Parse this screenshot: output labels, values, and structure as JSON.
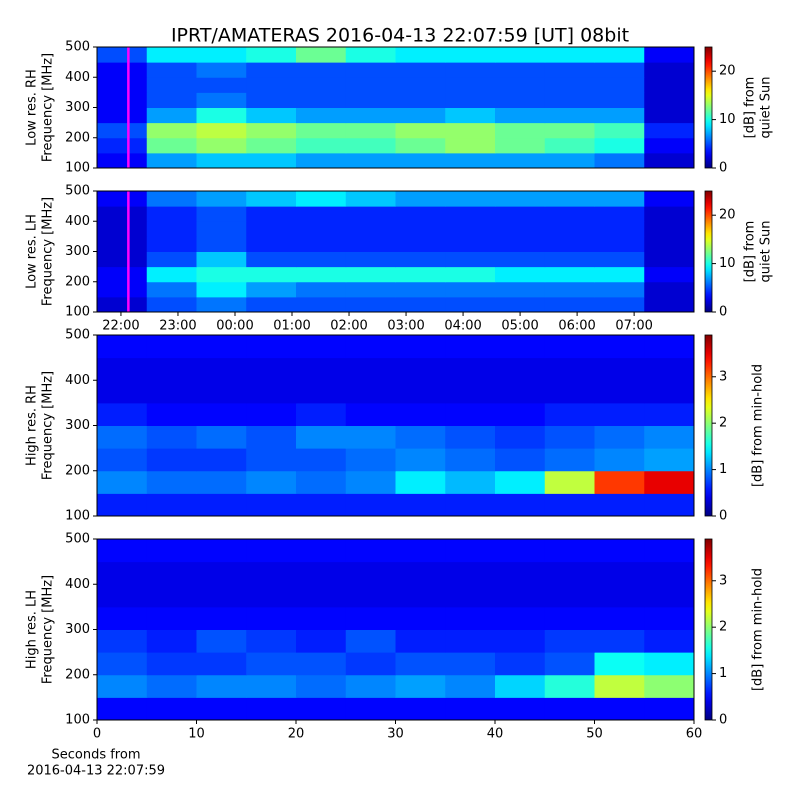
{
  "title": "IPRT/AMATERAS 2016-04-13 22:07:59 [UT]   08bit",
  "chart_data": [
    {
      "type": "heatmap",
      "ylabel": [
        "Low res. RH",
        "Frequency [MHz]"
      ],
      "colormap": "jet",
      "xlim": [
        21.58,
        32.05
      ],
      "ylim": [
        100,
        500
      ],
      "yticks": [
        100,
        200,
        300,
        400,
        500
      ],
      "clim": [
        0,
        25
      ],
      "cticks": [
        0,
        10,
        20
      ],
      "clabel": [
        "[dB] from",
        "quiet Sun"
      ],
      "marker_x": 22.13,
      "marker_color": "#ff00ff",
      "z": [
        [
          3,
          7,
          8,
          8,
          7,
          7,
          7,
          7,
          7,
          7,
          6,
          2
        ],
        [
          4,
          12,
          13,
          12,
          11,
          11,
          12,
          13,
          12,
          11,
          10,
          3
        ],
        [
          5,
          13,
          14,
          13,
          12,
          12,
          13,
          13,
          12,
          12,
          11,
          4
        ],
        [
          3,
          7,
          10,
          8,
          7,
          7,
          7,
          8,
          7,
          7,
          7,
          2
        ],
        [
          3,
          5,
          6,
          5,
          5,
          5,
          5,
          5,
          5,
          5,
          5,
          2
        ],
        [
          3,
          5,
          5,
          5,
          5,
          5,
          5,
          5,
          5,
          5,
          5,
          2
        ],
        [
          3,
          5,
          6,
          5,
          5,
          5,
          5,
          5,
          5,
          5,
          5,
          2
        ],
        [
          5,
          9,
          9,
          10,
          12,
          10,
          9,
          9,
          9,
          9,
          9,
          3
        ]
      ]
    },
    {
      "type": "heatmap",
      "ylabel": [
        "Low res. LH",
        "Frequency [MHz]"
      ],
      "colormap": "jet",
      "xlim": [
        21.58,
        32.05
      ],
      "ylim": [
        100,
        500
      ],
      "yticks": [
        100,
        200,
        300,
        400,
        500
      ],
      "xticks": [
        {
          "value": 22,
          "label": "22:00"
        },
        {
          "value": 23,
          "label": "23:00"
        },
        {
          "value": 24,
          "label": "00:00"
        },
        {
          "value": 25,
          "label": "01:00"
        },
        {
          "value": 26,
          "label": "02:00"
        },
        {
          "value": 27,
          "label": "03:00"
        },
        {
          "value": 28,
          "label": "04:00"
        },
        {
          "value": 29,
          "label": "05:00"
        },
        {
          "value": 30,
          "label": "06:00"
        },
        {
          "value": 31,
          "label": "07:00"
        }
      ],
      "clim": [
        0,
        25
      ],
      "cticks": [
        0,
        10,
        20
      ],
      "clabel": [
        "[dB] from",
        "quiet Sun"
      ],
      "marker_x": 22.13,
      "marker_color": "#ff00ff",
      "z": [
        [
          2,
          5,
          6,
          5,
          5,
          5,
          5,
          5,
          5,
          5,
          5,
          2
        ],
        [
          3,
          6,
          9,
          7,
          6,
          6,
          6,
          6,
          6,
          6,
          6,
          2
        ],
        [
          3,
          9,
          10,
          10,
          10,
          10,
          10,
          10,
          9,
          9,
          9,
          3
        ],
        [
          2,
          5,
          8,
          5,
          5,
          5,
          5,
          5,
          5,
          5,
          5,
          2
        ],
        [
          2,
          4,
          5,
          4,
          4,
          4,
          4,
          4,
          4,
          4,
          4,
          2
        ],
        [
          2,
          4,
          5,
          4,
          4,
          4,
          4,
          4,
          4,
          4,
          4,
          2
        ],
        [
          2,
          4,
          5,
          4,
          4,
          4,
          4,
          4,
          4,
          4,
          4,
          2
        ],
        [
          3,
          6,
          7,
          8,
          9,
          8,
          7,
          7,
          7,
          7,
          7,
          3
        ]
      ]
    },
    {
      "type": "heatmap",
      "ylabel": [
        "High res. RH",
        "Frequency [MHz]"
      ],
      "colormap": "jet",
      "xlim": [
        0,
        60
      ],
      "ylim": [
        100,
        500
      ],
      "yticks": [
        100,
        200,
        300,
        400,
        500
      ],
      "clim": [
        0,
        3.9
      ],
      "cticks": [
        0,
        1,
        2,
        3
      ],
      "clabel": [
        "[dB] from min-hold"
      ],
      "z": [
        [
          0.6,
          0.6,
          0.6,
          0.6,
          0.6,
          0.6,
          0.6,
          0.6,
          0.6,
          0.6,
          0.6,
          0.6
        ],
        [
          1.0,
          0.9,
          0.9,
          1.0,
          0.9,
          1.0,
          1.4,
          1.2,
          1.4,
          2.2,
          3.2,
          3.5
        ],
        [
          0.8,
          0.7,
          0.7,
          0.8,
          0.8,
          0.9,
          1.0,
          0.9,
          0.8,
          0.9,
          1.0,
          1.1
        ],
        [
          0.9,
          0.8,
          0.9,
          0.8,
          1.0,
          1.0,
          0.9,
          0.8,
          0.7,
          0.8,
          0.9,
          1.0
        ],
        [
          0.6,
          0.5,
          0.5,
          0.5,
          0.6,
          0.5,
          0.5,
          0.5,
          0.5,
          0.6,
          0.6,
          0.6
        ],
        [
          0.4,
          0.4,
          0.4,
          0.4,
          0.4,
          0.4,
          0.4,
          0.4,
          0.4,
          0.4,
          0.4,
          0.4
        ],
        [
          0.4,
          0.4,
          0.4,
          0.4,
          0.4,
          0.4,
          0.4,
          0.4,
          0.4,
          0.4,
          0.4,
          0.4
        ],
        [
          0.5,
          0.5,
          0.5,
          0.5,
          0.5,
          0.5,
          0.5,
          0.5,
          0.5,
          0.5,
          0.5,
          0.5
        ]
      ]
    },
    {
      "type": "heatmap",
      "ylabel": [
        "High res. LH",
        "Frequency [MHz]"
      ],
      "colormap": "jet",
      "xlim": [
        0,
        60
      ],
      "ylim": [
        100,
        500
      ],
      "yticks": [
        100,
        200,
        300,
        400,
        500
      ],
      "xticks": [
        0,
        10,
        20,
        30,
        40,
        50,
        60
      ],
      "xlabel": [
        "Seconds from",
        "2016-04-13 22:07:59"
      ],
      "clim": [
        0,
        3.9
      ],
      "cticks": [
        0,
        1,
        2,
        3
      ],
      "clabel": [
        "[dB] from min-hold"
      ],
      "z": [
        [
          0.5,
          0.5,
          0.5,
          0.5,
          0.5,
          0.5,
          0.5,
          0.5,
          0.5,
          0.5,
          0.5,
          0.5
        ],
        [
          1.0,
          0.9,
          1.0,
          1.0,
          0.9,
          1.0,
          1.1,
          1.0,
          1.3,
          1.6,
          2.2,
          2.0
        ],
        [
          0.8,
          0.7,
          0.7,
          0.8,
          0.8,
          0.7,
          0.8,
          0.8,
          0.7,
          0.8,
          1.5,
          1.4
        ],
        [
          0.7,
          0.6,
          0.8,
          0.7,
          0.6,
          0.8,
          0.6,
          0.6,
          0.6,
          0.7,
          0.7,
          0.6
        ],
        [
          0.5,
          0.5,
          0.5,
          0.5,
          0.5,
          0.5,
          0.5,
          0.5,
          0.5,
          0.5,
          0.5,
          0.5
        ],
        [
          0.4,
          0.4,
          0.4,
          0.4,
          0.4,
          0.4,
          0.4,
          0.4,
          0.4,
          0.4,
          0.4,
          0.4
        ],
        [
          0.4,
          0.4,
          0.4,
          0.4,
          0.4,
          0.4,
          0.4,
          0.4,
          0.4,
          0.4,
          0.4,
          0.4
        ],
        [
          0.5,
          0.5,
          0.5,
          0.5,
          0.5,
          0.5,
          0.5,
          0.5,
          0.5,
          0.5,
          0.5,
          0.5
        ]
      ]
    }
  ]
}
